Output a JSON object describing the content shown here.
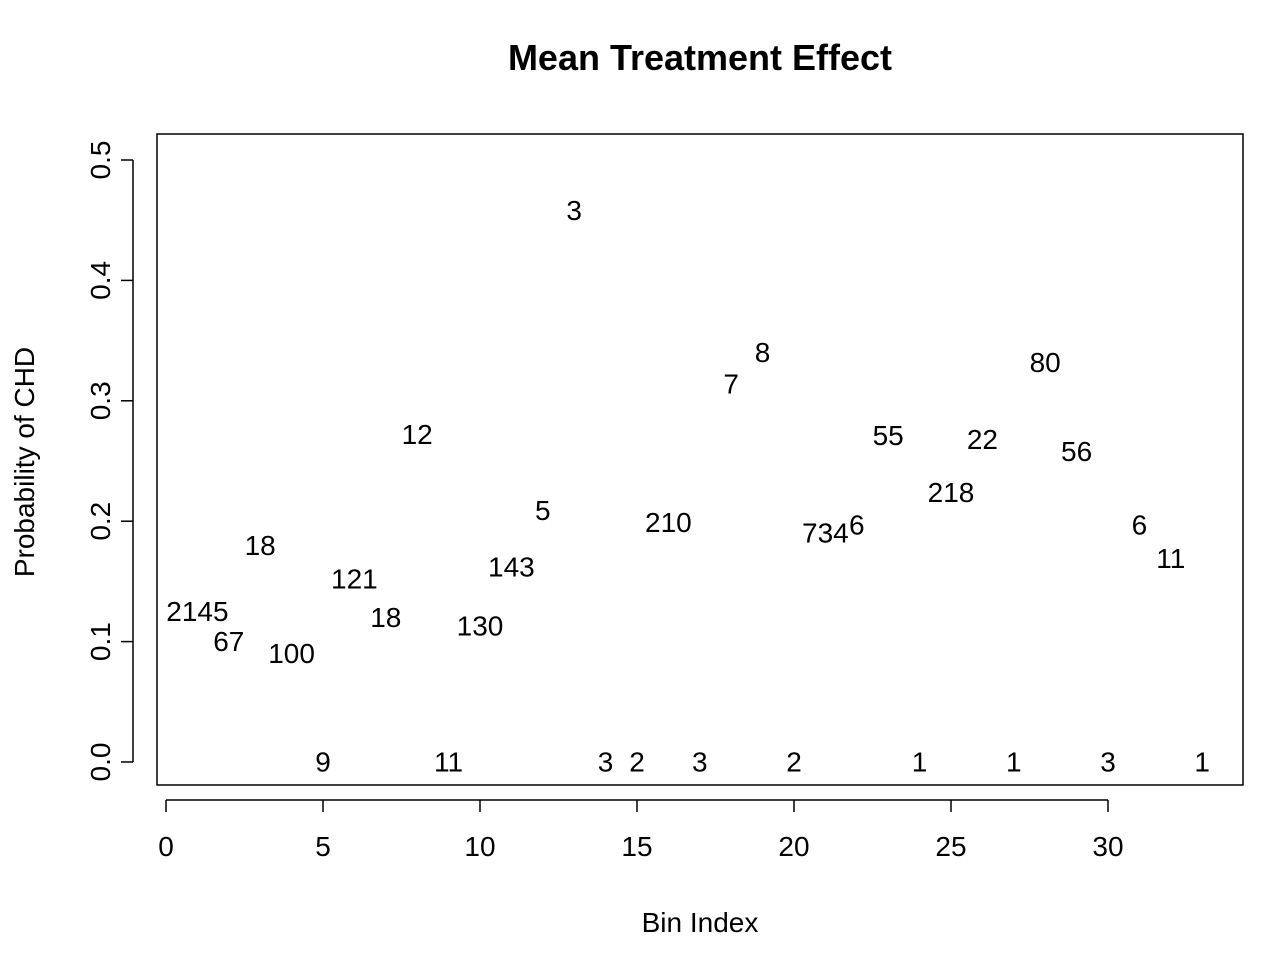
{
  "chart_data": {
    "type": "scatter",
    "title": "Mean Treatment Effect",
    "xlabel": "Bin Index",
    "ylabel": "Probability of CHD",
    "xlim": [
      0,
      33
    ],
    "ylim": [
      0.0,
      0.5
    ],
    "x_ticks": [
      0,
      5,
      10,
      15,
      20,
      25,
      30
    ],
    "y_ticks": [
      0.0,
      0.1,
      0.2,
      0.3,
      0.4,
      0.5
    ],
    "x_tick_labels": [
      "0",
      "5",
      "10",
      "15",
      "20",
      "25",
      "30"
    ],
    "y_tick_labels": [
      "0.0",
      "0.1",
      "0.2",
      "0.3",
      "0.4",
      "0.5"
    ],
    "marker": "text-count-label",
    "grid": false,
    "points": [
      {
        "x": 1,
        "y": 0.125,
        "label": "2145"
      },
      {
        "x": 2,
        "y": 0.1,
        "label": "67"
      },
      {
        "x": 3,
        "y": 0.18,
        "label": "18"
      },
      {
        "x": 4,
        "y": 0.09,
        "label": "100"
      },
      {
        "x": 5,
        "y": 0.0,
        "label": "9"
      },
      {
        "x": 6,
        "y": 0.152,
        "label": "121"
      },
      {
        "x": 7,
        "y": 0.12,
        "label": "18"
      },
      {
        "x": 8,
        "y": 0.272,
        "label": "12"
      },
      {
        "x": 9,
        "y": 0.0,
        "label": "11"
      },
      {
        "x": 10,
        "y": 0.113,
        "label": "130"
      },
      {
        "x": 11,
        "y": 0.162,
        "label": "143"
      },
      {
        "x": 12,
        "y": 0.209,
        "label": "5"
      },
      {
        "x": 13,
        "y": 0.458,
        "label": "3"
      },
      {
        "x": 14,
        "y": 0.0,
        "label": "3"
      },
      {
        "x": 15,
        "y": 0.0,
        "label": "2"
      },
      {
        "x": 16,
        "y": 0.199,
        "label": "210"
      },
      {
        "x": 17,
        "y": 0.0,
        "label": "3"
      },
      {
        "x": 18,
        "y": 0.314,
        "label": "7"
      },
      {
        "x": 19,
        "y": 0.34,
        "label": "8"
      },
      {
        "x": 20,
        "y": 0.0,
        "label": "2"
      },
      {
        "x": 21,
        "y": 0.19,
        "label": "734"
      },
      {
        "x": 22,
        "y": 0.197,
        "label": "6"
      },
      {
        "x": 23,
        "y": 0.271,
        "label": "55"
      },
      {
        "x": 24,
        "y": 0.0,
        "label": "1"
      },
      {
        "x": 25,
        "y": 0.224,
        "label": "218"
      },
      {
        "x": 26,
        "y": 0.268,
        "label": "22"
      },
      {
        "x": 27,
        "y": 0.0,
        "label": "1"
      },
      {
        "x": 28,
        "y": 0.332,
        "label": "80"
      },
      {
        "x": 29,
        "y": 0.258,
        "label": "56"
      },
      {
        "x": 30,
        "y": 0.0,
        "label": "3"
      },
      {
        "x": 31,
        "y": 0.197,
        "label": "6"
      },
      {
        "x": 32,
        "y": 0.169,
        "label": "11"
      },
      {
        "x": 33,
        "y": 0.0,
        "label": "1"
      }
    ]
  }
}
